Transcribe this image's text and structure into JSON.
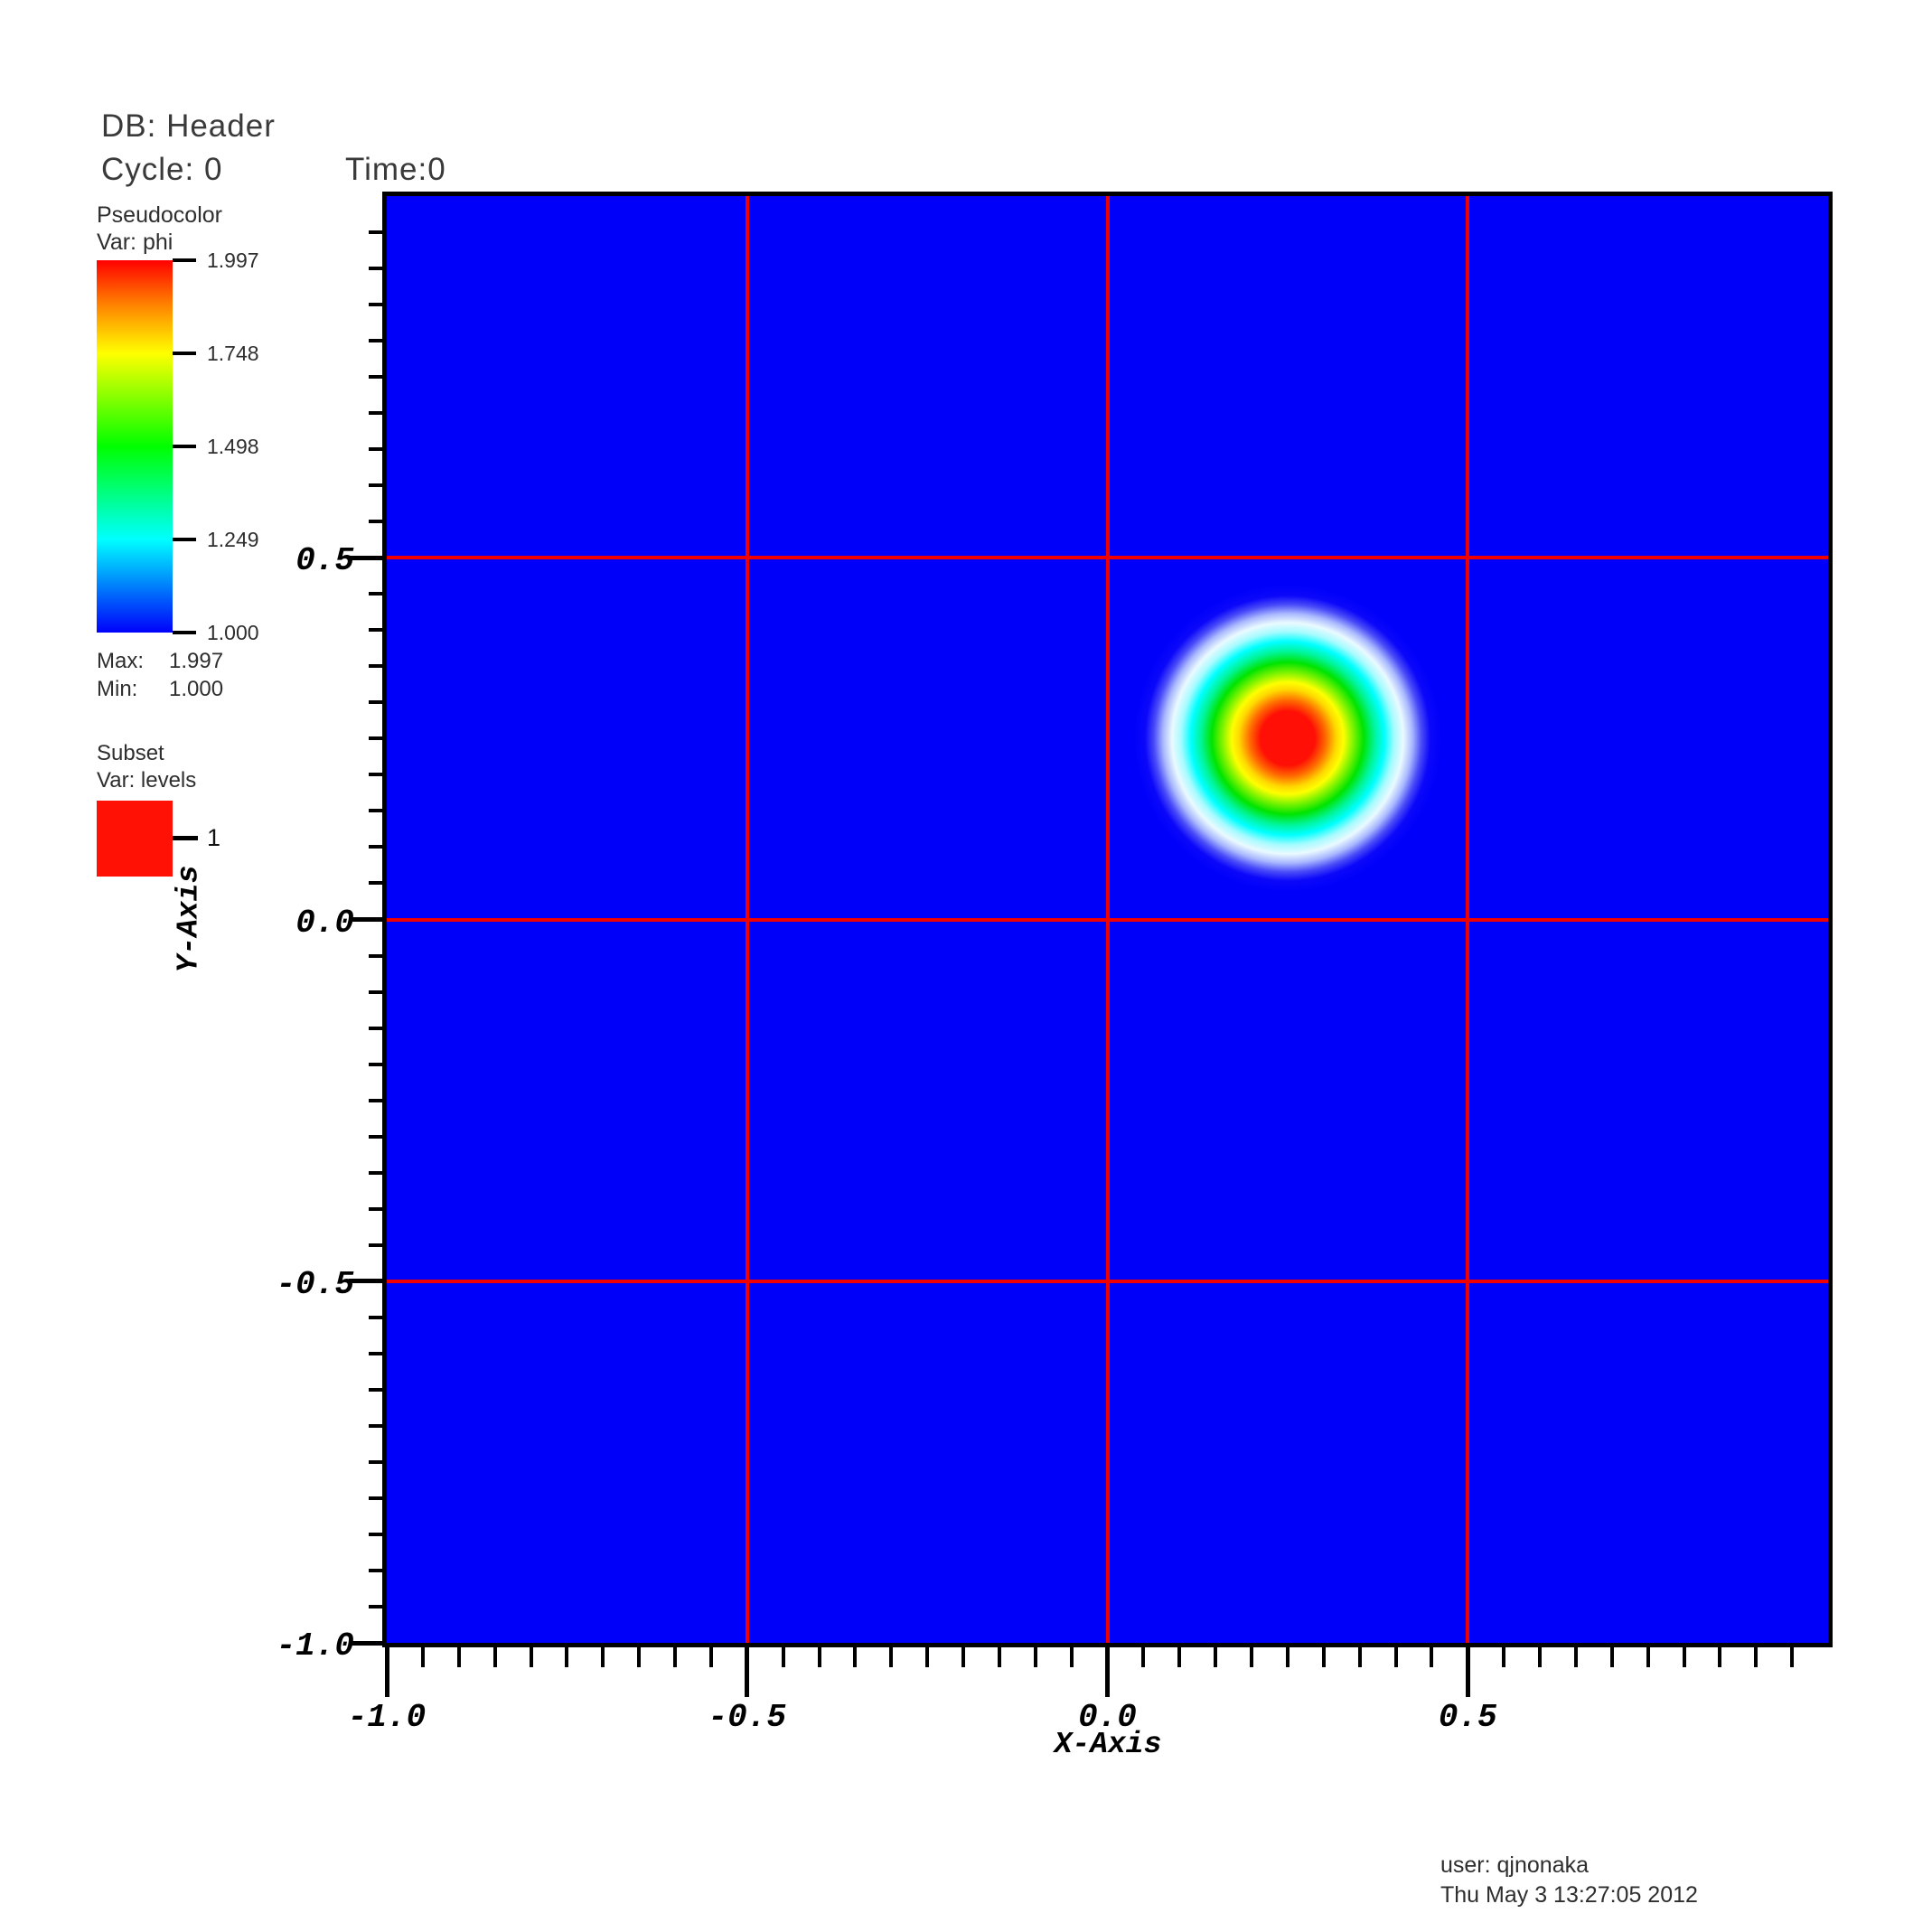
{
  "header": {
    "db": "DB: Header",
    "cycle": "Cycle: 0",
    "time": "Time:0"
  },
  "legend": {
    "pseudocolor": {
      "title": "Pseudocolor",
      "var_label": "Var: phi",
      "tick_labels": [
        "1.997",
        "1.748",
        "1.498",
        "1.249",
        "1.000"
      ],
      "max_label": "Max:",
      "max_value": "1.997",
      "min_label": "Min:",
      "min_value": "1.000",
      "colormap_stops": [
        {
          "color": "#ff0000",
          "percent": 0
        },
        {
          "color": "#ff8800",
          "percent": 12.5
        },
        {
          "color": "#ffff00",
          "percent": 25
        },
        {
          "color": "#00ff00",
          "percent": 50
        },
        {
          "color": "#00ffff",
          "percent": 75
        },
        {
          "color": "#0000fa",
          "percent": 100
        }
      ]
    },
    "subset": {
      "title": "Subset",
      "var_label": "Var: levels",
      "entries": [
        {
          "label": "1",
          "color": "#ff1205"
        }
      ]
    }
  },
  "footer": {
    "user": "user: qjnonaka",
    "date": "Thu May 3 13:27:05 2012"
  },
  "chart_data": {
    "type": "heatmap",
    "title": "",
    "xlabel": "X-Axis",
    "ylabel": "Y-Axis",
    "x_axis": {
      "min": -1.0,
      "max": 1.0,
      "major_ticks": [
        -1.0,
        -0.5,
        0.0,
        0.5
      ],
      "major_labels": [
        "-1.0",
        "-0.5",
        "0.0",
        "0.5"
      ],
      "minor_step": 0.05
    },
    "y_axis": {
      "min": -1.0,
      "max": 1.0,
      "major_ticks": [
        0.5,
        0.0,
        -0.5,
        -1.0
      ],
      "major_labels": [
        "0.5",
        "0.0",
        "-0.5",
        "-1.0"
      ],
      "minor_step": 0.05
    },
    "gridlines": {
      "x_values": [
        -0.5,
        0.0,
        0.5
      ],
      "y_values": [
        -0.5,
        0.0,
        0.5
      ],
      "color": "#f10000"
    },
    "field": {
      "variable": "phi",
      "background_value": 1.0,
      "peak_value": 1.997,
      "background_color": "#0000fa",
      "hotspot": {
        "center_x": 0.25,
        "center_y": 0.25,
        "radius": 0.13
      }
    },
    "legend_position": "left",
    "grid": "on"
  }
}
